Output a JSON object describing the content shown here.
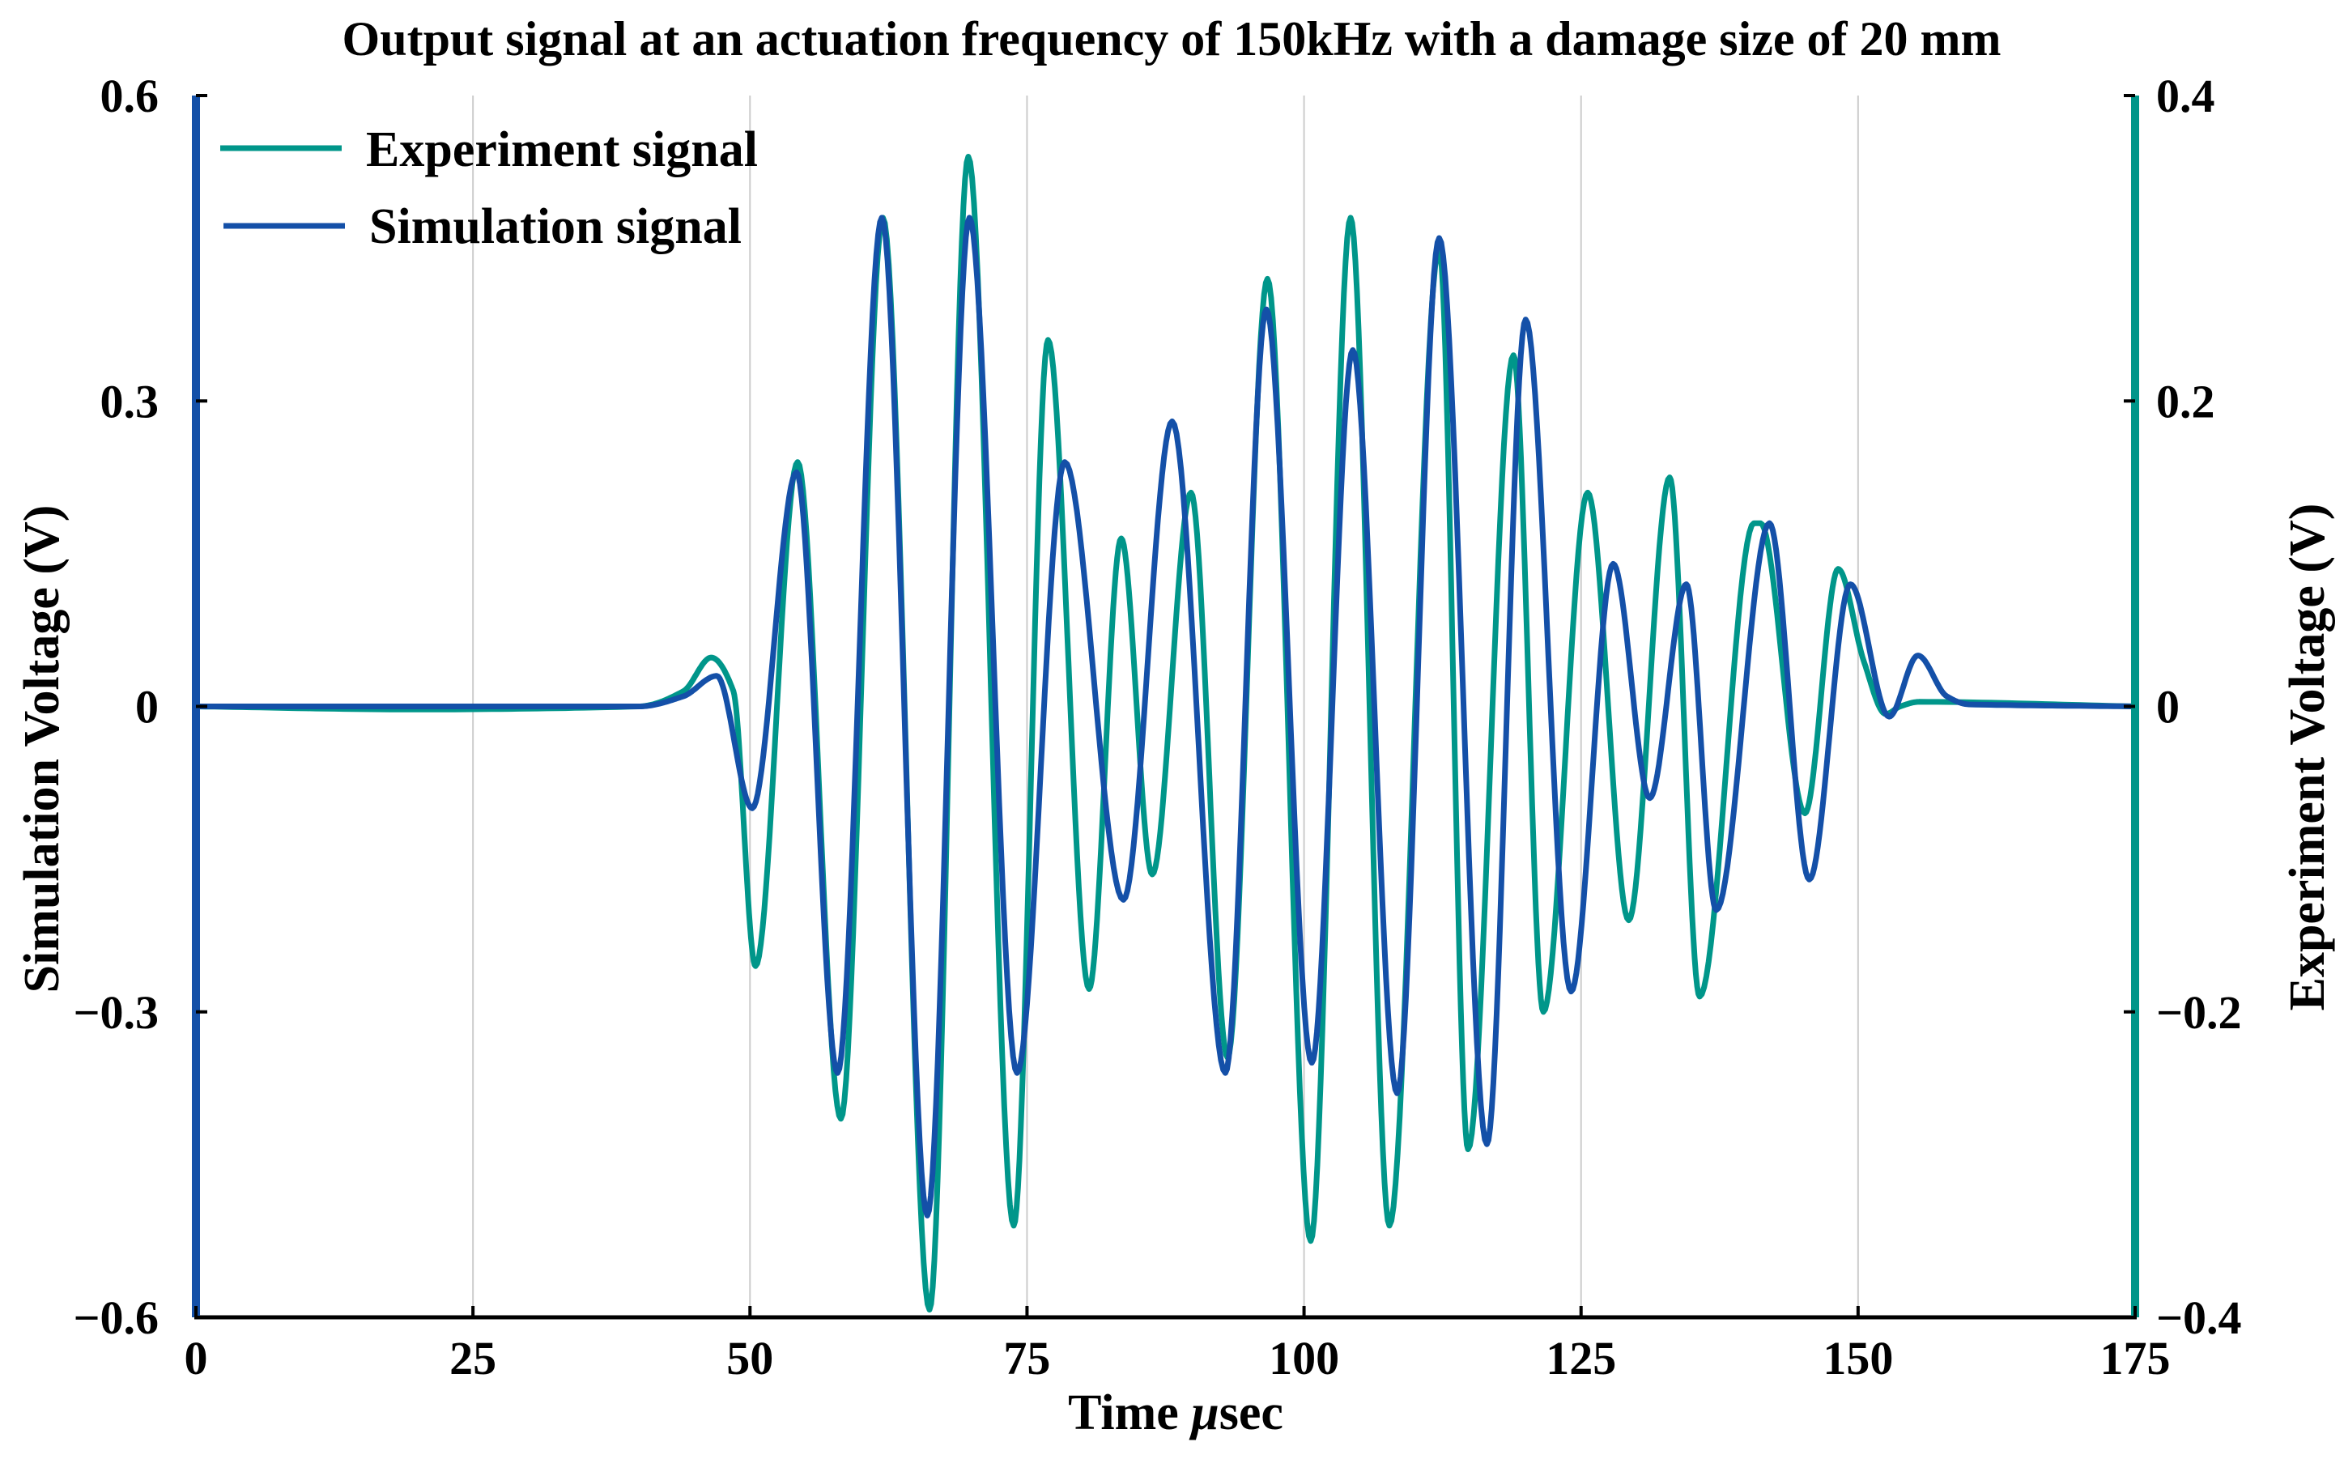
{
  "chart_data": {
    "type": "line",
    "title": "Output signal at an actuation frequency of 150kHz with a damage size of 20 mm",
    "xlabel_prefix": "Time ",
    "xlabel_unit_symbol": "μ",
    "xlabel_suffix": "sec",
    "ylabel_left": "Simulation Voltage (V)",
    "ylabel_right": "Experiment Voltage (V)",
    "xlim": [
      0,
      175
    ],
    "ylim_left": [
      -0.6,
      0.6
    ],
    "ylim_right": [
      -0.4,
      0.4
    ],
    "xticks": [
      "0",
      "25",
      "50",
      "75",
      "100",
      "125",
      "150",
      "175"
    ],
    "yticks_left": [
      "0.6",
      "0.3",
      "0",
      "−0.3",
      "−0.6"
    ],
    "yticks_right": [
      "0.4",
      "0.2",
      "0",
      "−0.2",
      "−0.4"
    ],
    "grid": "vertical",
    "legend_position": "top-left",
    "colors": {
      "experiment": "#00968a",
      "simulation": "#1450a8"
    },
    "series": [
      {
        "name": "Experiment signal",
        "axis": "right",
        "x": [
          0,
          20,
          40,
          44,
          46.5,
          48.5,
          50.5,
          54.3,
          58.2,
          62,
          66.2,
          69.7,
          73.8,
          76.9,
          80.6,
          83.5,
          86.3,
          89.8,
          93.1,
          96.7,
          100.6,
          104.2,
          107.7,
          112.2,
          114.8,
          118.9,
          121.6,
          125.6,
          129.3,
          133,
          135.7,
          140.6,
          141.2,
          145.2,
          148.2,
          150.5,
          152.5,
          153.8,
          155.5,
          175
        ],
        "y": [
          0,
          -0.002,
          0,
          0.01,
          0.032,
          0.01,
          -0.17,
          0.16,
          -0.27,
          0.32,
          -0.395,
          0.36,
          -0.34,
          0.24,
          -0.185,
          0.11,
          -0.11,
          0.14,
          -0.23,
          0.28,
          -0.35,
          0.32,
          -0.34,
          0.3,
          -0.29,
          0.23,
          -0.2,
          0.14,
          -0.14,
          0.15,
          -0.19,
          0.12,
          0.12,
          -0.07,
          0.09,
          0.03,
          -0.005,
          0,
          0.003,
          0
        ]
      },
      {
        "name": "Simulation signal",
        "axis": "left",
        "x": [
          0,
          20,
          40,
          44,
          47,
          50.2,
          54.2,
          57.9,
          61.9,
          66,
          69.8,
          74.1,
          78.4,
          83.7,
          88.1,
          92.9,
          96.6,
          100.7,
          104.4,
          108.4,
          112.2,
          116.5,
          120,
          124.1,
          127.9,
          131.2,
          134.5,
          137.2,
          142,
          145.6,
          149.3,
          152.8,
          155.4,
          158,
          160,
          175
        ],
        "y": [
          0,
          0,
          0,
          0.01,
          0.03,
          -0.1,
          0.23,
          -0.36,
          0.48,
          -0.5,
          0.48,
          -0.36,
          0.24,
          -0.19,
          0.28,
          -0.36,
          0.39,
          -0.35,
          0.35,
          -0.38,
          0.46,
          -0.43,
          0.38,
          -0.28,
          0.14,
          -0.09,
          0.12,
          -0.2,
          0.18,
          -0.17,
          0.12,
          -0.01,
          0.05,
          0.01,
          0.002,
          0
        ]
      }
    ]
  }
}
